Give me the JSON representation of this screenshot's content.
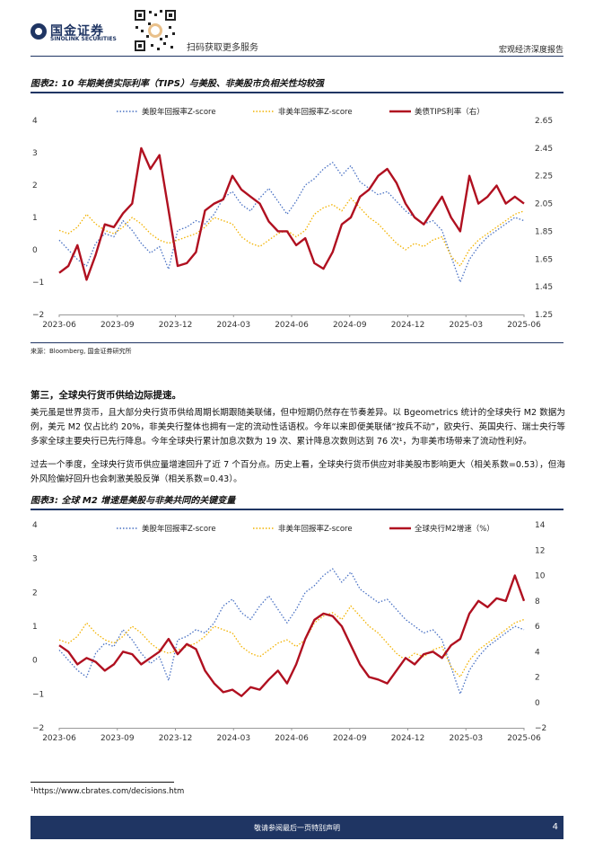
{
  "header": {
    "logo_cn": "国金证券",
    "logo_en": "SINOLINK SECURITIES",
    "scan_text": "扫码获取更多服务",
    "report_type": "宏观经济深度报告"
  },
  "figure2": {
    "title": "图表2: 10 年期美债实际利率（TIPS）与美股、非美股市负相关性均较强",
    "source": "来源：Bloomberg, 国金证券研究所"
  },
  "section3": {
    "title": "第三，全球央行货币供给边际提速。",
    "para1": "美元虽是世界货币，且大部分央行货币供给周期长期跟随美联储，但中短期仍然存在节奏差异。以 Bgeometrics 统计的全球央行 M2 数据为例，美元 M2 仅占比约 20%，非美央行整体也拥有一定的流动性话语权。今年以来即便美联储“按兵不动”，欧央行、英国央行、瑞士央行等多家全球主要央行已先行降息。今年全球央行累计加息次数为 19 次、累计降息次数则达到 76 次¹，为非美市场带来了流动性利好。",
    "para2": "过去一个季度，全球央行货币供应量增速回升了近 7 个百分点。历史上看，全球央行货币供应对非美股市影响更大（相关系数=0.53），但海外风险偏好回升也会刺激美股反弹（相关系数=0.43）。"
  },
  "figure3": {
    "title": "图表3: 全球 M2 增速是美股与非美共同的关键变量"
  },
  "footnote": "¹https://www.cbrates.com/decisions.htm",
  "footer": {
    "disclaimer": "敬请参阅最后一页特别声明",
    "page": "4"
  },
  "colors": {
    "brand": "#1f3563",
    "us_series": "#4a72c4",
    "nonus_series": "#f2b200",
    "third_series": "#b01020"
  },
  "chart_data": [
    {
      "type": "line",
      "x_ticks": [
        "2023-06",
        "2023-09",
        "2023-12",
        "2024-03",
        "2024-06",
        "2024-09",
        "2024-12",
        "2025-03",
        "2025-06"
      ],
      "y_left_ticks": [
        "4",
        "3",
        "2",
        "1",
        "0",
        "−1",
        "−2"
      ],
      "y_right_ticks": [
        "2.65",
        "2.45",
        "2.25",
        "2.05",
        "1.85",
        "1.65",
        "1.45",
        "1.25"
      ],
      "ylim_left": [
        -2,
        4
      ],
      "ylim_right": [
        1.25,
        2.65
      ],
      "legend_position": "top",
      "grid": false,
      "series": [
        {
          "name": "美股年回报率Z-score",
          "axis": "left",
          "style": "dotted",
          "color": "#4a72c4",
          "values": [
            0.3,
            0.0,
            -0.3,
            -0.5,
            0.2,
            0.5,
            0.4,
            0.9,
            0.6,
            0.2,
            -0.1,
            0.1,
            -0.6,
            0.6,
            0.7,
            0.9,
            0.8,
            1.1,
            1.6,
            1.8,
            1.4,
            1.2,
            1.6,
            1.9,
            1.5,
            1.1,
            1.5,
            2.0,
            2.2,
            2.5,
            2.7,
            2.3,
            2.6,
            2.1,
            1.9,
            1.7,
            1.8,
            1.5,
            1.2,
            1.0,
            0.8,
            0.9,
            0.6,
            -0.2,
            -1.0,
            -0.3,
            0.1,
            0.4,
            0.6,
            0.8,
            1.0,
            0.9
          ]
        },
        {
          "name": "非美年回报率Z-score",
          "axis": "left",
          "style": "dotted",
          "color": "#f2b200",
          "values": [
            0.6,
            0.5,
            0.7,
            1.1,
            0.8,
            0.6,
            0.5,
            0.7,
            1.0,
            0.8,
            0.5,
            0.3,
            0.2,
            0.3,
            0.4,
            0.5,
            0.7,
            1.0,
            0.9,
            0.8,
            0.4,
            0.2,
            0.1,
            0.3,
            0.5,
            0.6,
            0.4,
            0.6,
            1.1,
            1.3,
            1.4,
            1.2,
            1.6,
            1.3,
            1.0,
            0.8,
            0.5,
            0.2,
            0.0,
            0.2,
            0.1,
            0.3,
            0.4,
            -0.2,
            -0.5,
            0.0,
            0.3,
            0.5,
            0.7,
            0.9,
            1.1,
            1.2
          ]
        },
        {
          "name": "美债TIPS利率（右）",
          "axis": "right",
          "style": "solid",
          "color": "#b01020",
          "values": [
            1.55,
            1.6,
            1.75,
            1.5,
            1.68,
            1.9,
            1.88,
            1.98,
            2.05,
            2.45,
            2.3,
            2.4,
            2.0,
            1.6,
            1.62,
            1.7,
            2.0,
            2.05,
            2.08,
            2.25,
            2.15,
            2.1,
            2.05,
            1.92,
            1.85,
            1.85,
            1.75,
            1.8,
            1.62,
            1.58,
            1.7,
            1.9,
            1.95,
            2.1,
            2.15,
            2.25,
            2.3,
            2.2,
            2.05,
            1.95,
            1.9,
            2.0,
            2.1,
            1.95,
            1.85,
            2.25,
            2.05,
            2.1,
            2.18,
            2.05,
            2.1,
            2.05
          ]
        }
      ]
    },
    {
      "type": "line",
      "x_ticks": [
        "2023-06",
        "2023-09",
        "2023-12",
        "2024-03",
        "2024-06",
        "2024-09",
        "2024-12",
        "2025-03",
        "2025-06"
      ],
      "y_left_ticks": [
        "4",
        "3",
        "2",
        "1",
        "0",
        "−1",
        "−2"
      ],
      "y_right_ticks": [
        "14",
        "12",
        "10",
        "8",
        "6",
        "4",
        "2",
        "0",
        "−2"
      ],
      "ylim_left": [
        -2,
        4
      ],
      "ylim_right": [
        -2,
        14
      ],
      "legend_position": "top",
      "grid": false,
      "series": [
        {
          "name": "美股年回报率Z-score",
          "axis": "left",
          "style": "dotted",
          "color": "#4a72c4",
          "values": [
            0.3,
            0.0,
            -0.3,
            -0.5,
            0.2,
            0.5,
            0.4,
            0.9,
            0.6,
            0.2,
            -0.1,
            0.1,
            -0.6,
            0.6,
            0.7,
            0.9,
            0.8,
            1.1,
            1.6,
            1.8,
            1.4,
            1.2,
            1.6,
            1.9,
            1.5,
            1.1,
            1.5,
            2.0,
            2.2,
            2.5,
            2.7,
            2.3,
            2.6,
            2.1,
            1.9,
            1.7,
            1.8,
            1.5,
            1.2,
            1.0,
            0.8,
            0.9,
            0.6,
            -0.2,
            -1.0,
            -0.3,
            0.1,
            0.4,
            0.6,
            0.8,
            1.0,
            0.9
          ]
        },
        {
          "name": "非美年回报率Z-score",
          "axis": "left",
          "style": "dotted",
          "color": "#f2b200",
          "values": [
            0.6,
            0.5,
            0.7,
            1.1,
            0.8,
            0.6,
            0.5,
            0.7,
            1.0,
            0.8,
            0.5,
            0.3,
            0.2,
            0.3,
            0.4,
            0.5,
            0.7,
            1.0,
            0.9,
            0.8,
            0.4,
            0.2,
            0.1,
            0.3,
            0.5,
            0.6,
            0.4,
            0.6,
            1.1,
            1.3,
            1.4,
            1.2,
            1.6,
            1.3,
            1.0,
            0.8,
            0.5,
            0.2,
            0.0,
            0.2,
            0.1,
            0.3,
            0.4,
            -0.2,
            -0.5,
            0.0,
            0.3,
            0.5,
            0.7,
            0.9,
            1.1,
            1.2
          ]
        },
        {
          "name": "全球央行M2增速（%）",
          "axis": "right",
          "style": "solid",
          "color": "#b01020",
          "values": [
            4.5,
            4.0,
            3.0,
            3.5,
            3.2,
            2.5,
            3.0,
            4.0,
            3.8,
            3.0,
            3.5,
            4.0,
            5.0,
            3.8,
            4.6,
            4.2,
            2.5,
            1.5,
            0.8,
            1.0,
            0.5,
            1.2,
            1.0,
            1.8,
            2.5,
            1.5,
            3.0,
            5.0,
            6.5,
            7.0,
            6.8,
            6.0,
            4.5,
            3.0,
            2.0,
            1.8,
            1.5,
            2.5,
            3.5,
            3.0,
            3.8,
            4.0,
            3.5,
            4.5,
            5.0,
            7.0,
            8.0,
            7.5,
            8.2,
            8.0,
            10.0,
            8.0
          ]
        }
      ]
    }
  ]
}
